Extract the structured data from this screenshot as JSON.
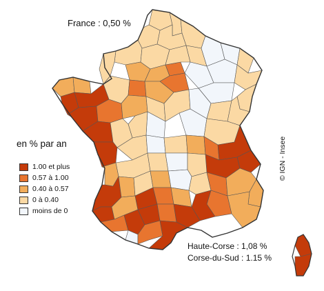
{
  "headline": "France : 0,50 %",
  "legend": {
    "title": "en % par an",
    "items": [
      {
        "label": "1.00 et plus",
        "color": "#c43b0a"
      },
      {
        "label": "0.57 à 1.00",
        "color": "#e8752f"
      },
      {
        "label": "0.40 à 0.57",
        "color": "#f2ad5b"
      },
      {
        "label": "0 à 0.40",
        "color": "#fbd9a4"
      },
      {
        "label": "moins de 0",
        "color": "#f2f6fb"
      }
    ]
  },
  "credit": "© IGN - Insee",
  "notes": [
    "Haute-Corse : 1,08 %",
    "Corse-du-Sud : 1.15 %"
  ],
  "colors": {
    "border": "#555555",
    "coast": "#333333"
  }
}
